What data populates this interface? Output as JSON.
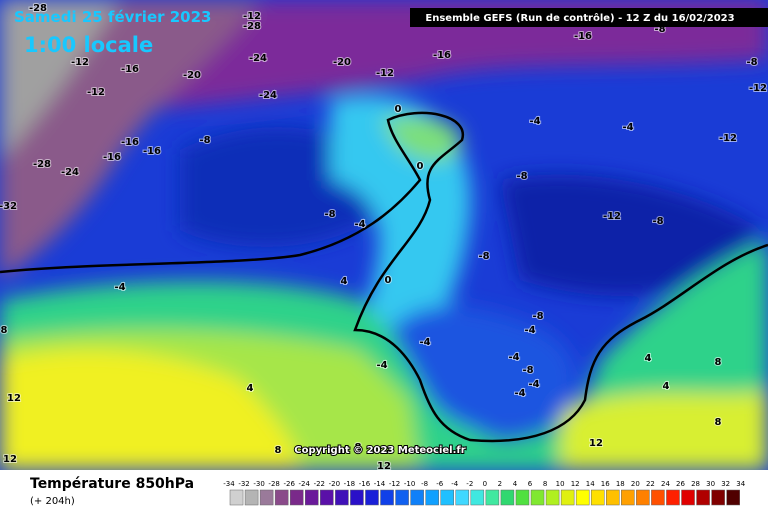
{
  "header": {
    "date": "Samedi 25 février 2023",
    "time": "1:00 locale",
    "run": "Ensemble GEFS  (Run de contrôle)  -  12 Z du 16/02/2023"
  },
  "map": {
    "copyright": "Copyright © 2023 Meteociel.fr",
    "contour_labels": [
      -28,
      -12,
      -28,
      -16,
      -8,
      -12,
      -16,
      -20,
      -24,
      -20,
      -16,
      -12,
      -8,
      -12,
      -24,
      -12,
      0,
      -4,
      -4,
      -12,
      -16,
      -16,
      -16,
      -8,
      -28,
      -24,
      0,
      -8,
      -32,
      -8,
      -4,
      -12,
      -8,
      -8,
      -4,
      4,
      0,
      -8,
      -4,
      8,
      -4,
      -4,
      -4,
      4,
      8,
      -8,
      -4,
      -4,
      4,
      4,
      12,
      8,
      12,
      8,
      8,
      12,
      12
    ]
  },
  "footer": {
    "title": "Température 850hPa",
    "lead": "(+ 204h)",
    "scale": [
      -34,
      -32,
      -30,
      -28,
      -26,
      -24,
      -22,
      -20,
      -18,
      -16,
      -14,
      -12,
      -10,
      -8,
      -6,
      -4,
      -2,
      0,
      2,
      4,
      6,
      8,
      10,
      12,
      14,
      16,
      18,
      20,
      22,
      24,
      26,
      28,
      30,
      32,
      34
    ]
  }
}
